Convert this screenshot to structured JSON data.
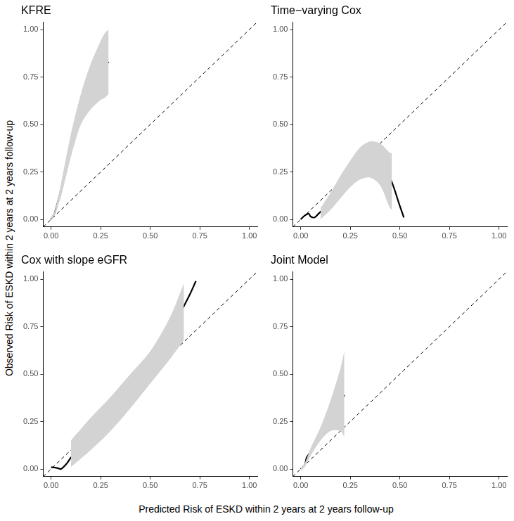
{
  "x_label": "Predicted Risk of ESKD within 2 years at 2 years follow-up",
  "y_label": "Observed Risk of ESKD within 2 years at 2 years follow-up",
  "chart_data": [
    {
      "type": "line",
      "title": "KFRE",
      "grid": false,
      "xlim": [
        -0.04,
        1.04
      ],
      "ylim": [
        -0.04,
        1.04
      ],
      "xticks": [
        {
          "value": 0,
          "label": "0.00"
        },
        0.25,
        {
          "value": 0.5,
          "label": "0.50"
        },
        0.75,
        {
          "value": 1,
          "label": "1.00"
        }
      ],
      "yticks": [
        {
          "value": 0,
          "label": "0.00"
        },
        0.25,
        {
          "value": 0.5,
          "label": "0.50"
        },
        0.75,
        {
          "value": 1,
          "label": "1.00"
        }
      ],
      "series": [
        {
          "type": "band",
          "color": "#d3d3d3",
          "x": [
            0.0,
            0.02,
            0.05,
            0.1,
            0.15,
            0.2,
            0.25,
            0.27,
            0.29
          ],
          "lower": [
            -0.01,
            0.03,
            0.12,
            0.33,
            0.5,
            0.58,
            0.63,
            0.64,
            0.66
          ],
          "upper": [
            0.01,
            0.05,
            0.19,
            0.45,
            0.66,
            0.82,
            0.94,
            0.98,
            1.0
          ]
        },
        {
          "type": "line",
          "color": "#000000",
          "line_style": "solid",
          "x": [
            0.0,
            0.02,
            0.05,
            0.1,
            0.15,
            0.2,
            0.25,
            0.29
          ],
          "values": [
            0.0,
            0.04,
            0.16,
            0.38,
            0.57,
            0.7,
            0.78,
            0.83
          ]
        },
        {
          "type": "line",
          "color": "#000000",
          "line_style": "dashed",
          "x": [
            -0.04,
            1.04
          ],
          "values": [
            -0.04,
            1.04
          ]
        }
      ]
    },
    {
      "type": "line",
      "title": "Time−varying Cox",
      "grid": false,
      "xlim": [
        -0.04,
        1.04
      ],
      "ylim": [
        -0.04,
        1.04
      ],
      "xticks": [
        {
          "value": 0,
          "label": "0.00"
        },
        0.25,
        {
          "value": 0.5,
          "label": "0.50"
        },
        0.75,
        {
          "value": 1,
          "label": "1.00"
        }
      ],
      "yticks": [
        {
          "value": 0,
          "label": "0.00"
        },
        0.25,
        {
          "value": 0.5,
          "label": "0.50"
        },
        0.75,
        {
          "value": 1,
          "label": "1.00"
        }
      ],
      "series": [
        {
          "type": "band",
          "color": "#d3d3d3",
          "x": [
            0.1,
            0.15,
            0.2,
            0.25,
            0.3,
            0.35,
            0.4,
            0.45,
            0.46
          ],
          "lower": [
            0.0,
            0.05,
            0.11,
            0.17,
            0.21,
            0.22,
            0.18,
            0.06,
            0.05
          ],
          "upper": [
            0.06,
            0.14,
            0.23,
            0.31,
            0.38,
            0.41,
            0.4,
            0.35,
            0.35
          ]
        },
        {
          "type": "line",
          "color": "#000000",
          "line_style": "solid",
          "x": [
            0.0,
            0.02,
            0.04,
            0.05,
            0.07,
            0.09,
            0.12,
            0.15,
            0.2,
            0.25,
            0.3,
            0.35,
            0.4,
            0.45,
            0.5,
            0.52
          ],
          "values": [
            0.0,
            0.02,
            0.03,
            0.015,
            0.01,
            0.03,
            0.06,
            0.1,
            0.17,
            0.23,
            0.28,
            0.305,
            0.29,
            0.22,
            0.07,
            0.01
          ]
        },
        {
          "type": "line",
          "color": "#000000",
          "line_style": "dashed",
          "x": [
            -0.04,
            1.04
          ],
          "values": [
            -0.04,
            1.04
          ]
        }
      ]
    },
    {
      "type": "line",
      "title": "Cox with slope eGFR",
      "grid": false,
      "xlim": [
        -0.04,
        1.04
      ],
      "ylim": [
        -0.04,
        1.04
      ],
      "xticks": [
        {
          "value": 0,
          "label": "0.00"
        },
        0.25,
        {
          "value": 0.5,
          "label": "0.50"
        },
        0.75,
        {
          "value": 1,
          "label": "1.00"
        }
      ],
      "yticks": [
        {
          "value": 0,
          "label": "0.00"
        },
        0.25,
        {
          "value": 0.5,
          "label": "0.50"
        },
        0.75,
        {
          "value": 1,
          "label": "1.00"
        }
      ],
      "series": [
        {
          "type": "band",
          "color": "#d3d3d3",
          "x": [
            0.1,
            0.2,
            0.3,
            0.4,
            0.5,
            0.6,
            0.67
          ],
          "lower": [
            0.01,
            0.1,
            0.2,
            0.32,
            0.45,
            0.58,
            0.68
          ],
          "upper": [
            0.15,
            0.27,
            0.38,
            0.5,
            0.62,
            0.8,
            0.98
          ]
        },
        {
          "type": "line",
          "color": "#000000",
          "line_style": "solid",
          "x": [
            0.0,
            0.03,
            0.05,
            0.08,
            0.1,
            0.2,
            0.3,
            0.4,
            0.5,
            0.6,
            0.7,
            0.73
          ],
          "values": [
            0.01,
            0.005,
            0.0,
            0.03,
            0.06,
            0.17,
            0.28,
            0.41,
            0.55,
            0.72,
            0.92,
            0.99
          ]
        },
        {
          "type": "line",
          "color": "#000000",
          "line_style": "dashed",
          "x": [
            -0.04,
            1.04
          ],
          "values": [
            -0.04,
            1.04
          ]
        }
      ]
    },
    {
      "type": "line",
      "title": "Joint Model",
      "grid": false,
      "xlim": [
        -0.04,
        1.04
      ],
      "ylim": [
        -0.04,
        1.04
      ],
      "xticks": [
        {
          "value": 0,
          "label": "0.00"
        },
        0.25,
        {
          "value": 0.5,
          "label": "0.50"
        },
        0.75,
        {
          "value": 1,
          "label": "1.00"
        }
      ],
      "yticks": [
        {
          "value": 0,
          "label": "0.00"
        },
        0.25,
        {
          "value": 0.5,
          "label": "0.50"
        },
        0.75,
        {
          "value": 1,
          "label": "1.00"
        }
      ],
      "series": [
        {
          "type": "band",
          "color": "#d3d3d3",
          "x": [
            0.0,
            0.02,
            0.05,
            0.1,
            0.15,
            0.2,
            0.22
          ],
          "lower": [
            -0.01,
            0.01,
            0.07,
            0.15,
            0.2,
            0.2,
            0.17
          ],
          "upper": [
            0.01,
            0.03,
            0.11,
            0.22,
            0.36,
            0.53,
            0.62
          ]
        },
        {
          "type": "line",
          "color": "#000000",
          "line_style": "solid",
          "x": [
            0.0,
            0.02,
            0.03,
            0.05,
            0.1,
            0.15,
            0.2,
            0.22
          ],
          "values": [
            0.0,
            0.02,
            0.06,
            0.09,
            0.18,
            0.27,
            0.35,
            0.39
          ]
        },
        {
          "type": "line",
          "color": "#000000",
          "line_style": "dashed",
          "x": [
            -0.04,
            1.04
          ],
          "values": [
            -0.04,
            1.04
          ]
        }
      ]
    }
  ]
}
